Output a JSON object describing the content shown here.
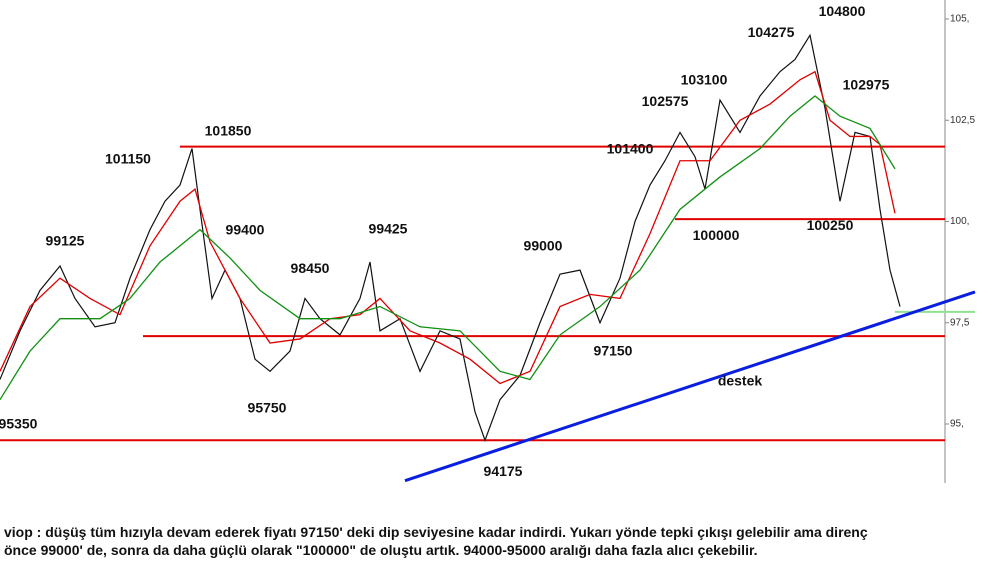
{
  "chart_data": {
    "type": "line",
    "xlim": [
      0,
      945
    ],
    "ylim": [
      93.5,
      105.5
    ],
    "yticks": [
      {
        "value": 95,
        "label": "95,"
      },
      {
        "value": 97.5,
        "label": "97,5"
      },
      {
        "value": 100,
        "label": "100,"
      },
      {
        "value": 102.5,
        "label": "102,5"
      },
      {
        "value": 105,
        "label": "105,"
      }
    ],
    "series": [
      {
        "color": "#111111",
        "x": [
          0,
          20,
          40,
          60,
          75,
          95,
          115,
          130,
          150,
          165,
          180,
          192,
          200,
          212,
          225,
          240,
          255,
          270,
          290,
          305,
          320,
          340,
          360,
          370,
          380,
          400,
          420,
          440,
          460,
          475,
          485,
          500,
          520,
          540,
          560,
          580,
          600,
          620,
          635,
          650,
          665,
          680,
          695,
          705,
          720,
          740,
          760,
          780,
          795,
          810,
          825,
          840,
          855,
          870,
          880,
          890,
          900
        ],
        "values": [
          96.1,
          97.3,
          98.3,
          98.9,
          98.1,
          97.4,
          97.5,
          98.6,
          99.8,
          100.5,
          100.9,
          101.8,
          100.3,
          98.1,
          98.8,
          98.1,
          96.6,
          96.3,
          96.8,
          98.1,
          97.6,
          97.2,
          98.1,
          99.0,
          97.3,
          97.6,
          96.3,
          97.3,
          97.1,
          95.3,
          94.6,
          95.6,
          96.2,
          97.5,
          98.7,
          98.8,
          97.5,
          98.6,
          100.0,
          100.9,
          101.5,
          102.2,
          101.6,
          100.8,
          103.0,
          102.2,
          103.1,
          103.7,
          104.0,
          104.6,
          102.8,
          100.5,
          102.2,
          102.1,
          100.3,
          98.8,
          97.9
        ]
      },
      {
        "color": "#e00000",
        "x": [
          0,
          30,
          60,
          90,
          120,
          150,
          180,
          195,
          210,
          240,
          270,
          300,
          330,
          360,
          380,
          410,
          440,
          470,
          500,
          530,
          560,
          590,
          620,
          650,
          680,
          710,
          740,
          770,
          800,
          815,
          830,
          850,
          870,
          880,
          895
        ],
        "values": [
          96.3,
          97.9,
          98.6,
          98.1,
          97.7,
          99.4,
          100.5,
          100.8,
          99.5,
          98.1,
          97.0,
          97.1,
          97.6,
          97.7,
          98.1,
          97.3,
          97.0,
          96.6,
          96.0,
          96.3,
          97.9,
          98.2,
          98.1,
          99.7,
          101.5,
          101.5,
          102.5,
          102.9,
          103.5,
          103.7,
          102.5,
          102.1,
          102.1,
          101.9,
          100.2
        ]
      },
      {
        "color": "#109010",
        "x": [
          0,
          30,
          60,
          100,
          130,
          160,
          200,
          230,
          260,
          300,
          340,
          380,
          420,
          460,
          500,
          530,
          560,
          600,
          640,
          680,
          720,
          760,
          790,
          815,
          840,
          870,
          895
        ],
        "values": [
          95.6,
          96.8,
          97.6,
          97.6,
          98.1,
          99.0,
          99.8,
          99.1,
          98.3,
          97.6,
          97.6,
          97.9,
          97.4,
          97.3,
          96.3,
          96.1,
          97.2,
          97.9,
          98.8,
          100.3,
          101.1,
          101.8,
          102.6,
          103.1,
          102.6,
          102.3,
          101.3
        ]
      }
    ],
    "levels": [
      {
        "value": 101.85,
        "x": [
          180,
          945
        ],
        "color": "#e00000"
      },
      {
        "value": 100.06,
        "x": [
          675,
          945
        ],
        "color": "#e00000"
      },
      {
        "value": 97.17,
        "x": [
          143,
          945
        ],
        "color": "#e00000"
      },
      {
        "value": 94.6,
        "x": [
          0,
          945
        ],
        "color": "#e00000"
      },
      {
        "value": 97.77,
        "x": [
          895,
          975
        ],
        "color": "#90e090"
      }
    ],
    "trendline": {
      "label": "destek",
      "color": "#0a1ee0",
      "x": [
        405,
        975
      ],
      "values": [
        93.6,
        98.26
      ]
    },
    "annotations": [
      {
        "label": "95350",
        "value": 95.35,
        "x": 18,
        "side": "below"
      },
      {
        "label": "99125",
        "value": 99.125,
        "x": 65,
        "side": "above"
      },
      {
        "label": "101150",
        "value": 101.15,
        "x": 128,
        "side": "above"
      },
      {
        "label": "101850",
        "value": 101.85,
        "x": 228,
        "side": "above"
      },
      {
        "label": "99400",
        "value": 99.4,
        "x": 245,
        "side": "above"
      },
      {
        "label": "98450",
        "value": 98.45,
        "x": 310,
        "side": "above"
      },
      {
        "label": "99425",
        "value": 99.425,
        "x": 388,
        "side": "above"
      },
      {
        "label": "95750",
        "value": 95.75,
        "x": 267,
        "side": "below"
      },
      {
        "label": "94175",
        "value": 94.175,
        "x": 503,
        "side": "below"
      },
      {
        "label": "99000",
        "value": 99.0,
        "x": 543,
        "side": "above"
      },
      {
        "label": "97150",
        "value": 97.15,
        "x": 613,
        "side": "below"
      },
      {
        "label": "101400",
        "value": 101.4,
        "x": 630,
        "side": "above"
      },
      {
        "label": "102575",
        "value": 102.575,
        "x": 665,
        "side": "above"
      },
      {
        "label": "103100",
        "value": 103.1,
        "x": 704,
        "side": "above"
      },
      {
        "label": "104275",
        "value": 104.275,
        "x": 771,
        "side": "above"
      },
      {
        "label": "104800",
        "value": 104.8,
        "x": 842,
        "side": "above"
      },
      {
        "label": "102975",
        "value": 102.975,
        "x": 866,
        "side": "above"
      },
      {
        "label": "100000",
        "value": 100.0,
        "x": 716,
        "side": "below"
      },
      {
        "label": "100250",
        "value": 100.25,
        "x": 830,
        "side": "below"
      }
    ],
    "caption": [
      "viop : düşüş tüm hızıyla devam ederek fiyatı 97150' deki dip seviyesine kadar indirdi. Yukarı yönde tepki çıkışı gelebilir ama direnç",
      "önce 99000' de, sonra da daha güçlü olarak \"100000\" de oluştu artık. 94000-95000 aralığı daha fazla alıcı çekebilir."
    ]
  }
}
